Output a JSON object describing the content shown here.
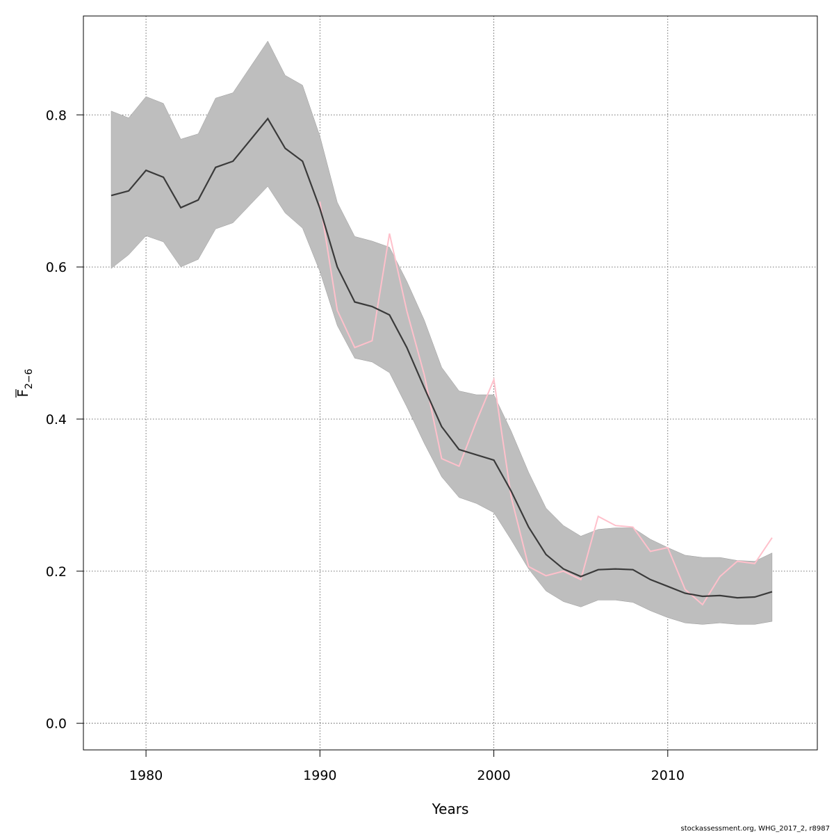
{
  "chart_data": {
    "type": "line",
    "xlabel": "Years",
    "ylabel": {
      "main": "F",
      "subscript": "2−6",
      "overline": true
    },
    "xlim": [
      1976.4,
      2018.6
    ],
    "ylim": [
      -0.035,
      0.93
    ],
    "x_ticks": [
      1980,
      1990,
      2000,
      2010
    ],
    "y_ticks": [
      0.0,
      0.2,
      0.4,
      0.6,
      0.8
    ],
    "y_tick_labels": [
      "0.0",
      "0.2",
      "0.4",
      "0.6",
      "0.8"
    ],
    "grid": true,
    "colors": {
      "band": "#bebebe",
      "estimate": "#3a3a3a",
      "observed": "#ffc0cb"
    },
    "x": [
      1978,
      1979,
      1980,
      1981,
      1982,
      1983,
      1984,
      1985,
      1986,
      1987,
      1988,
      1989,
      1990,
      1991,
      1992,
      1993,
      1994,
      1995,
      1996,
      1997,
      1998,
      1999,
      2000,
      2001,
      2002,
      2003,
      2004,
      2005,
      2006,
      2007,
      2008,
      2009,
      2010,
      2011,
      2012,
      2013,
      2014,
      2015,
      2016
    ],
    "series": [
      {
        "role": "estimate",
        "values": [
          0.694,
          0.7,
          0.727,
          0.718,
          0.678,
          0.688,
          0.731,
          0.739,
          0.767,
          0.795,
          0.756,
          0.739,
          0.677,
          0.6,
          0.554,
          0.548,
          0.537,
          0.494,
          0.441,
          0.39,
          0.36,
          0.353,
          0.346,
          0.305,
          0.258,
          0.222,
          0.203,
          0.193,
          0.202,
          0.203,
          0.202,
          0.189,
          0.18,
          0.171,
          0.167,
          0.168,
          0.165,
          0.166,
          0.173
        ]
      },
      {
        "role": "upper",
        "values": [
          0.805,
          0.796,
          0.824,
          0.815,
          0.768,
          0.775,
          0.822,
          0.829,
          0.863,
          0.897,
          0.852,
          0.839,
          0.772,
          0.685,
          0.64,
          0.634,
          0.626,
          0.581,
          0.53,
          0.468,
          0.437,
          0.432,
          0.432,
          0.384,
          0.33,
          0.283,
          0.26,
          0.246,
          0.255,
          0.257,
          0.257,
          0.242,
          0.231,
          0.221,
          0.218,
          0.218,
          0.214,
          0.213,
          0.224
        ]
      },
      {
        "role": "lower",
        "values": [
          0.598,
          0.616,
          0.641,
          0.633,
          0.6,
          0.61,
          0.65,
          0.658,
          0.682,
          0.706,
          0.671,
          0.651,
          0.594,
          0.523,
          0.48,
          0.475,
          0.461,
          0.416,
          0.368,
          0.324,
          0.297,
          0.289,
          0.277,
          0.241,
          0.203,
          0.174,
          0.16,
          0.153,
          0.162,
          0.162,
          0.159,
          0.148,
          0.139,
          0.132,
          0.13,
          0.132,
          0.13,
          0.13,
          0.134
        ]
      },
      {
        "role": "observed",
        "x": [
          1990,
          1991,
          1992,
          1993,
          1994,
          1995,
          1996,
          1997,
          1998,
          1999,
          2000,
          2001,
          2002,
          2003,
          2004,
          2005,
          2006,
          2007,
          2008,
          2009,
          2010,
          2011,
          2012,
          2013,
          2014,
          2015,
          2016
        ],
        "values": [
          0.686,
          0.543,
          0.494,
          0.503,
          0.644,
          0.542,
          0.458,
          0.348,
          0.338,
          0.397,
          0.452,
          0.297,
          0.206,
          0.194,
          0.2,
          0.189,
          0.272,
          0.26,
          0.258,
          0.226,
          0.231,
          0.176,
          0.156,
          0.193,
          0.213,
          0.21,
          0.244
        ]
      }
    ]
  },
  "footer": "stockassessment.org, WHG_2017_2, r8987"
}
